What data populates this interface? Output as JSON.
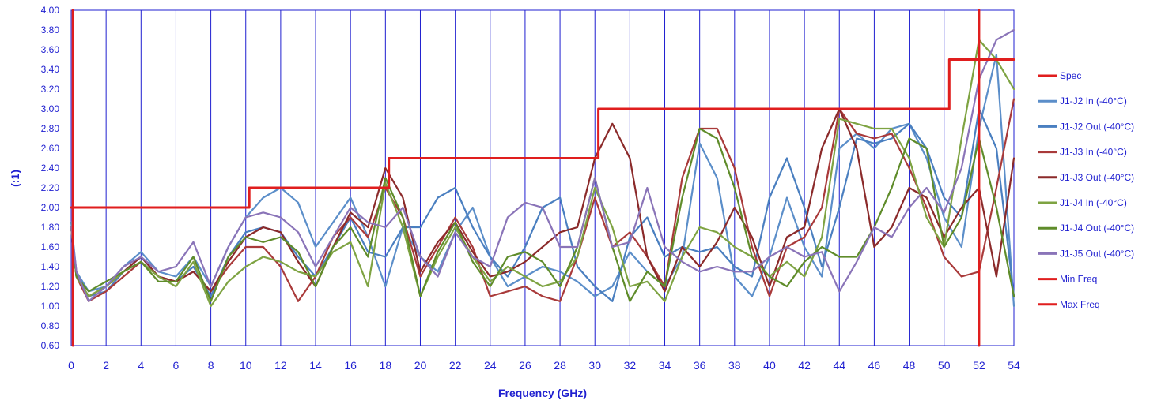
{
  "chart_data": {
    "type": "line",
    "title": "",
    "xlabel": "Frequency (GHz)",
    "ylabel": "(:1)",
    "xlim": [
      0,
      54
    ],
    "ylim": [
      0.6,
      4.0
    ],
    "x_ticks": [
      "0",
      "2",
      "4",
      "6",
      "8",
      "10",
      "12",
      "14",
      "16",
      "18",
      "20",
      "22",
      "24",
      "26",
      "28",
      "30",
      "32",
      "34",
      "36",
      "38",
      "40",
      "42",
      "44",
      "46",
      "48",
      "50",
      "52",
      "54"
    ],
    "y_ticks": [
      "0.60",
      "0.80",
      "1.00",
      "1.20",
      "1.40",
      "1.60",
      "1.80",
      "2.00",
      "2.20",
      "2.40",
      "2.60",
      "2.80",
      "3.00",
      "3.20",
      "3.40",
      "3.60",
      "3.80",
      "4.00"
    ],
    "grid": "vertical",
    "legend_position": "right",
    "colors": {
      "spec": "#e01e1e",
      "grid": "#1f1fd0",
      "axis_text": "#1f1fd0"
    },
    "series": [
      {
        "name": "Spec",
        "color": "#e01e1e",
        "x": [
          0,
          10.2,
          10.2,
          18.2,
          18.2,
          30.2,
          30.2,
          50.3,
          50.3,
          54
        ],
        "y": [
          2.0,
          2.0,
          2.2,
          2.2,
          2.5,
          2.5,
          3.0,
          3.0,
          3.5,
          3.5
        ]
      },
      {
        "name": "J1-J2 In (-40°C)",
        "color": "#5b8ec9",
        "x": [
          0,
          0.3,
          1,
          2,
          3,
          4,
          5,
          6,
          7,
          8,
          9,
          10,
          11,
          12,
          13,
          14,
          15,
          16,
          17,
          18,
          19,
          20,
          21,
          22,
          23,
          24,
          25,
          26,
          27,
          28,
          29,
          30,
          31,
          32,
          33,
          34,
          35,
          36,
          37,
          38,
          39,
          40,
          41,
          42,
          43,
          44,
          45,
          46,
          47,
          48,
          49,
          50,
          51,
          52,
          53,
          54
        ],
        "y": [
          1.85,
          1.35,
          1.15,
          1.2,
          1.4,
          1.55,
          1.35,
          1.3,
          1.5,
          1.2,
          1.6,
          1.9,
          2.1,
          2.2,
          2.05,
          1.6,
          1.85,
          2.1,
          1.7,
          1.2,
          1.8,
          1.5,
          1.35,
          1.75,
          2.0,
          1.5,
          1.2,
          1.3,
          1.4,
          1.35,
          1.25,
          1.1,
          1.2,
          1.55,
          1.35,
          1.2,
          1.5,
          2.65,
          2.3,
          1.3,
          1.1,
          1.5,
          2.1,
          1.6,
          1.3,
          2.6,
          2.75,
          2.6,
          2.8,
          2.85,
          2.5,
          1.9,
          1.6,
          2.8,
          3.55,
          1.0
        ]
      },
      {
        "name": "J1-J2 Out (-40°C)",
        "color": "#4a7fc0",
        "x": [
          0,
          0.3,
          1,
          2,
          3,
          4,
          5,
          6,
          7,
          8,
          9,
          10,
          11,
          12,
          13,
          14,
          15,
          16,
          17,
          18,
          19,
          20,
          21,
          22,
          23,
          24,
          25,
          26,
          27,
          28,
          29,
          30,
          31,
          32,
          33,
          34,
          35,
          36,
          37,
          38,
          39,
          40,
          41,
          42,
          43,
          44,
          45,
          46,
          47,
          48,
          49,
          50,
          51,
          52,
          53,
          54
        ],
        "y": [
          1.8,
          1.3,
          1.1,
          1.15,
          1.35,
          1.5,
          1.3,
          1.25,
          1.4,
          1.1,
          1.5,
          1.75,
          1.8,
          1.75,
          1.5,
          1.3,
          1.6,
          1.9,
          1.55,
          1.5,
          1.8,
          1.8,
          2.1,
          2.2,
          1.8,
          1.5,
          1.3,
          1.6,
          2.0,
          2.1,
          1.4,
          1.2,
          1.05,
          1.7,
          1.9,
          1.5,
          1.6,
          1.55,
          1.6,
          1.4,
          1.3,
          2.1,
          2.5,
          2.0,
          1.4,
          2.0,
          2.7,
          2.65,
          2.7,
          2.85,
          2.6,
          2.1,
          1.9,
          3.0,
          2.6,
          1.1
        ]
      },
      {
        "name": "J1-J3 In (-40°C)",
        "color": "#a93a3a",
        "x": [
          0,
          0.3,
          1,
          2,
          3,
          4,
          5,
          6,
          7,
          8,
          9,
          10,
          11,
          12,
          13,
          14,
          15,
          16,
          17,
          18,
          19,
          20,
          21,
          22,
          23,
          24,
          25,
          26,
          27,
          28,
          29,
          30,
          31,
          32,
          33,
          34,
          35,
          36,
          37,
          38,
          39,
          40,
          41,
          42,
          43,
          44,
          45,
          46,
          47,
          48,
          49,
          50,
          51,
          52,
          53,
          54
        ],
        "y": [
          1.8,
          1.3,
          1.05,
          1.15,
          1.3,
          1.45,
          1.3,
          1.25,
          1.35,
          1.15,
          1.4,
          1.6,
          1.6,
          1.4,
          1.05,
          1.3,
          1.7,
          1.9,
          1.7,
          2.2,
          1.9,
          1.3,
          1.6,
          1.9,
          1.6,
          1.1,
          1.15,
          1.2,
          1.1,
          1.05,
          1.5,
          2.1,
          1.6,
          1.75,
          1.5,
          1.2,
          2.3,
          2.8,
          2.8,
          2.4,
          1.6,
          1.1,
          1.6,
          1.7,
          2.0,
          3.0,
          2.75,
          2.7,
          2.75,
          2.4,
          2.0,
          1.5,
          1.3,
          1.35,
          2.2,
          3.1
        ]
      },
      {
        "name": "J1-J3 Out (-40°C)",
        "color": "#8b2a2a",
        "x": [
          0,
          0.3,
          1,
          2,
          3,
          4,
          5,
          6,
          7,
          8,
          9,
          10,
          11,
          12,
          13,
          14,
          15,
          16,
          17,
          18,
          19,
          20,
          21,
          22,
          23,
          24,
          25,
          26,
          27,
          28,
          29,
          30,
          31,
          32,
          33,
          34,
          35,
          36,
          37,
          38,
          39,
          40,
          41,
          42,
          43,
          44,
          45,
          46,
          47,
          48,
          49,
          50,
          51,
          52,
          53,
          54
        ],
        "y": [
          1.8,
          1.3,
          1.1,
          1.2,
          1.35,
          1.5,
          1.3,
          1.25,
          1.35,
          1.15,
          1.45,
          1.7,
          1.8,
          1.75,
          1.45,
          1.2,
          1.6,
          1.95,
          1.8,
          2.4,
          2.1,
          1.35,
          1.65,
          1.85,
          1.55,
          1.3,
          1.35,
          1.45,
          1.6,
          1.75,
          1.8,
          2.5,
          2.85,
          2.5,
          1.5,
          1.15,
          1.6,
          1.4,
          1.65,
          2.0,
          1.7,
          1.2,
          1.7,
          1.8,
          2.6,
          3.0,
          2.6,
          1.6,
          1.8,
          2.2,
          2.1,
          1.7,
          2.0,
          2.2,
          1.3,
          2.5
        ]
      },
      {
        "name": "J1-J4 In (-40°C)",
        "color": "#7ea342",
        "x": [
          0,
          0.3,
          1,
          2,
          3,
          4,
          5,
          6,
          7,
          8,
          9,
          10,
          11,
          12,
          13,
          14,
          15,
          16,
          17,
          18,
          19,
          20,
          21,
          22,
          23,
          24,
          25,
          26,
          27,
          28,
          29,
          30,
          31,
          32,
          33,
          34,
          35,
          36,
          37,
          38,
          39,
          40,
          41,
          42,
          43,
          44,
          45,
          46,
          47,
          48,
          49,
          50,
          51,
          52,
          53,
          54
        ],
        "y": [
          1.8,
          1.3,
          1.1,
          1.2,
          1.35,
          1.45,
          1.3,
          1.2,
          1.45,
          1.0,
          1.25,
          1.4,
          1.5,
          1.45,
          1.35,
          1.3,
          1.55,
          1.65,
          1.2,
          2.25,
          1.8,
          1.1,
          1.5,
          1.8,
          1.5,
          1.25,
          1.4,
          1.3,
          1.2,
          1.25,
          1.5,
          2.2,
          1.8,
          1.2,
          1.25,
          1.05,
          1.5,
          1.8,
          1.75,
          1.6,
          1.5,
          1.3,
          1.45,
          1.3,
          1.7,
          2.9,
          2.85,
          2.8,
          2.8,
          2.5,
          1.9,
          1.6,
          2.7,
          3.7,
          3.5,
          3.2
        ]
      },
      {
        "name": "J1-J4 Out (-40°C)",
        "color": "#5f8c2a",
        "x": [
          0,
          0.3,
          1,
          2,
          3,
          4,
          5,
          6,
          7,
          8,
          9,
          10,
          11,
          12,
          13,
          14,
          15,
          16,
          17,
          18,
          19,
          20,
          21,
          22,
          23,
          24,
          25,
          26,
          27,
          28,
          29,
          30,
          31,
          32,
          33,
          34,
          35,
          36,
          37,
          38,
          39,
          40,
          41,
          42,
          43,
          44,
          45,
          46,
          47,
          48,
          49,
          50,
          51,
          52,
          53,
          54
        ],
        "y": [
          1.8,
          1.3,
          1.15,
          1.25,
          1.35,
          1.45,
          1.25,
          1.25,
          1.5,
          1.05,
          1.5,
          1.7,
          1.65,
          1.7,
          1.55,
          1.2,
          1.6,
          1.8,
          1.5,
          2.3,
          1.9,
          1.1,
          1.55,
          1.85,
          1.45,
          1.2,
          1.5,
          1.55,
          1.45,
          1.2,
          1.6,
          2.3,
          1.6,
          1.05,
          1.35,
          1.2,
          2.1,
          2.8,
          2.7,
          2.2,
          1.5,
          1.3,
          1.2,
          1.45,
          1.6,
          1.5,
          1.5,
          1.8,
          2.2,
          2.7,
          2.6,
          1.6,
          1.9,
          2.7,
          2.0,
          1.1
        ]
      },
      {
        "name": "J1-J5 Out (-40°C)",
        "color": "#8a74b8",
        "x": [
          0,
          0.3,
          1,
          2,
          3,
          4,
          5,
          6,
          7,
          8,
          9,
          10,
          11,
          12,
          13,
          14,
          15,
          16,
          17,
          18,
          19,
          20,
          21,
          22,
          23,
          24,
          25,
          26,
          27,
          28,
          29,
          30,
          31,
          32,
          33,
          34,
          35,
          36,
          37,
          38,
          39,
          40,
          41,
          42,
          43,
          44,
          45,
          46,
          47,
          48,
          49,
          50,
          51,
          52,
          53,
          54
        ],
        "y": [
          1.8,
          1.35,
          1.05,
          1.2,
          1.4,
          1.5,
          1.35,
          1.4,
          1.65,
          1.2,
          1.6,
          1.9,
          1.95,
          1.9,
          1.75,
          1.4,
          1.7,
          2.0,
          1.85,
          1.8,
          2.0,
          1.5,
          1.3,
          1.75,
          1.5,
          1.4,
          1.9,
          2.05,
          2.0,
          1.6,
          1.6,
          2.3,
          1.6,
          1.65,
          2.2,
          1.6,
          1.45,
          1.35,
          1.4,
          1.35,
          1.35,
          1.5,
          1.6,
          1.5,
          1.55,
          1.15,
          1.45,
          1.8,
          1.7,
          2.0,
          2.2,
          1.95,
          2.4,
          3.3,
          3.7,
          3.8
        ]
      },
      {
        "name": "Min Freq",
        "color": "#e01e1e",
        "x": [
          0.1,
          0.1
        ],
        "y": [
          0.6,
          4.0
        ]
      },
      {
        "name": "Max Freq",
        "color": "#e01e1e",
        "x": [
          52,
          52
        ],
        "y": [
          0.6,
          4.0
        ]
      }
    ]
  }
}
